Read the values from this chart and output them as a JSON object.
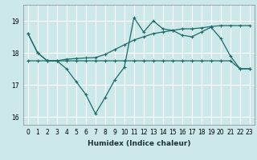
{
  "xlabel": "Humidex (Indice chaleur)",
  "bg_color": "#cce8e8",
  "grid_color": "#ffffff",
  "line_color": "#1a6b6b",
  "x": [
    0,
    1,
    2,
    3,
    4,
    5,
    6,
    7,
    8,
    9,
    10,
    11,
    12,
    13,
    14,
    15,
    16,
    17,
    18,
    19,
    20,
    21,
    22,
    23
  ],
  "line_zigzag": [
    18.6,
    18.0,
    17.75,
    17.75,
    17.5,
    17.1,
    16.7,
    16.1,
    16.6,
    17.15,
    17.55,
    19.1,
    18.65,
    19.0,
    18.75,
    18.7,
    18.55,
    18.5,
    18.65,
    18.8,
    18.45,
    17.9,
    17.5,
    17.5
  ],
  "line_upper": [
    18.6,
    18.0,
    17.75,
    17.75,
    17.8,
    17.82,
    17.84,
    17.85,
    17.95,
    18.1,
    18.25,
    18.4,
    18.5,
    18.6,
    18.65,
    18.7,
    18.75,
    18.75,
    18.78,
    18.82,
    18.85,
    18.85,
    18.85,
    18.85
  ],
  "line_flat": [
    17.75,
    17.75,
    17.75,
    17.75,
    17.75,
    17.75,
    17.75,
    17.75,
    17.75,
    17.75,
    17.75,
    17.75,
    17.75,
    17.75,
    17.75,
    17.75,
    17.75,
    17.75,
    17.75,
    17.75,
    17.75,
    17.75,
    17.5,
    17.5
  ],
  "ylim": [
    15.75,
    19.5
  ],
  "yticks": [
    16,
    17,
    18,
    19
  ],
  "xtick_labels": [
    "0",
    "1",
    "2",
    "3",
    "4",
    "5",
    "6",
    "7",
    "8",
    "9",
    "10",
    "11",
    "12",
    "13",
    "14",
    "15",
    "16",
    "17",
    "18",
    "19",
    "20",
    "21",
    "22",
    "23"
  ],
  "label_fontsize": 6.5,
  "tick_fontsize": 5.5
}
